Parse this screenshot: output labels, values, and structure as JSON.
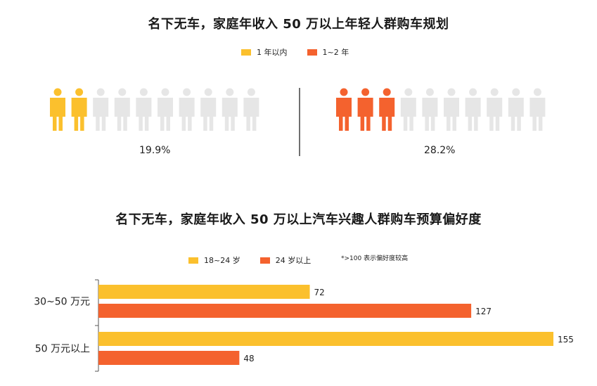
{
  "chart_data": [
    {
      "type": "pictogram",
      "title": "名下无车，家庭年收入 50 万以上年轻人群购车规划",
      "legend": [
        {
          "label": "1 年以内",
          "color": "#FBC02D"
        },
        {
          "label": "1~2 年",
          "color": "#F4622E"
        }
      ],
      "groups": [
        {
          "name": "1 年以内",
          "value": 19.9,
          "label": "19.9%",
          "icons_total": 10,
          "icons_filled": 2,
          "color": "#FBC02D"
        },
        {
          "name": "1~2 年",
          "value": 28.2,
          "label": "28.2%",
          "icons_total": 10,
          "icons_filled": 3,
          "color": "#F4622E"
        }
      ],
      "inactive_color": "#E6E6E6"
    },
    {
      "type": "bar",
      "orientation": "horizontal",
      "title": "名下无车，家庭年收入 50 万以上汽车兴趣人群购车预算偏好度",
      "note": "*>100 表示偏好度较高",
      "categories": [
        "30~50 万元",
        "50 万元以上"
      ],
      "series": [
        {
          "name": "18~24 岁",
          "color": "#FBC02D",
          "values": [
            72,
            155
          ]
        },
        {
          "name": "24 岁以上",
          "color": "#F4622E",
          "values": [
            127,
            48
          ]
        }
      ],
      "xlim": [
        0,
        160
      ]
    }
  ]
}
